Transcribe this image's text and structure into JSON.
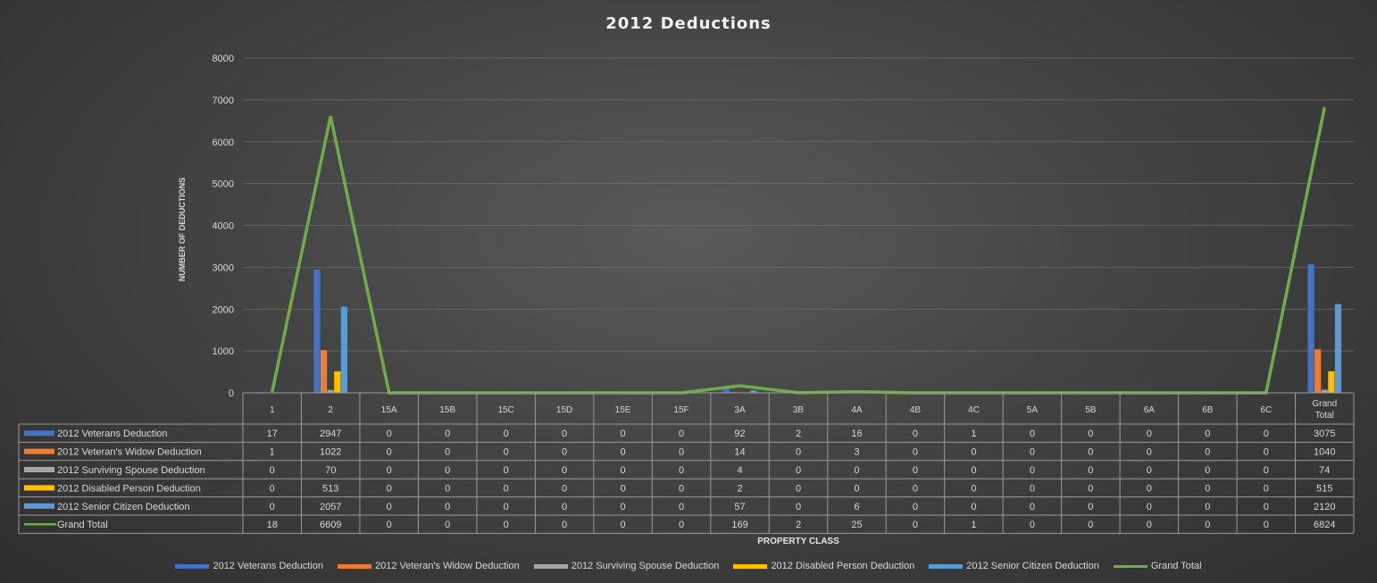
{
  "chart_data": {
    "type": "bar",
    "title": "2012 Deductions",
    "xlabel": "PROPERTY CLASS",
    "ylabel": "NUMBER OF DEDUCTIONS",
    "ylim": [
      0,
      8000
    ],
    "yticks": [
      0,
      1000,
      2000,
      3000,
      4000,
      5000,
      6000,
      7000,
      8000
    ],
    "grid": true,
    "legend_position": "bottom",
    "data_table": true,
    "categories": [
      "1",
      "2",
      "15A",
      "15B",
      "15C",
      "15D",
      "15E",
      "15F",
      "3A",
      "3B",
      "4A",
      "4B",
      "4C",
      "5A",
      "5B",
      "6A",
      "6B",
      "6C",
      "Grand Total"
    ],
    "series": [
      {
        "name": "2012 Veterans Deduction",
        "kind": "bar",
        "color": "#4472c4",
        "values": [
          17,
          2947,
          0,
          0,
          0,
          0,
          0,
          0,
          92,
          2,
          16,
          0,
          1,
          0,
          0,
          0,
          0,
          0,
          3075
        ]
      },
      {
        "name": "2012 Veteran's Widow Deduction",
        "kind": "bar",
        "color": "#ed7d31",
        "values": [
          1,
          1022,
          0,
          0,
          0,
          0,
          0,
          0,
          14,
          0,
          3,
          0,
          0,
          0,
          0,
          0,
          0,
          0,
          1040
        ]
      },
      {
        "name": "2012 Surviving Spouse Deduction",
        "kind": "bar",
        "color": "#a5a5a5",
        "values": [
          0,
          70,
          0,
          0,
          0,
          0,
          0,
          0,
          4,
          0,
          0,
          0,
          0,
          0,
          0,
          0,
          0,
          0,
          74
        ]
      },
      {
        "name": "2012 Disabled Person Deduction",
        "kind": "bar",
        "color": "#ffc000",
        "values": [
          0,
          513,
          0,
          0,
          0,
          0,
          0,
          0,
          2,
          0,
          0,
          0,
          0,
          0,
          0,
          0,
          0,
          0,
          515
        ]
      },
      {
        "name": "2012 Senior Citizen Deduction",
        "kind": "bar",
        "color": "#5b9bd5",
        "values": [
          0,
          2057,
          0,
          0,
          0,
          0,
          0,
          0,
          57,
          0,
          6,
          0,
          0,
          0,
          0,
          0,
          0,
          0,
          2120
        ]
      },
      {
        "name": "Grand Total",
        "kind": "line",
        "color": "#70ad47",
        "values": [
          18,
          6609,
          0,
          0,
          0,
          0,
          0,
          0,
          169,
          2,
          25,
          0,
          1,
          0,
          0,
          0,
          0,
          0,
          6824
        ]
      }
    ]
  }
}
